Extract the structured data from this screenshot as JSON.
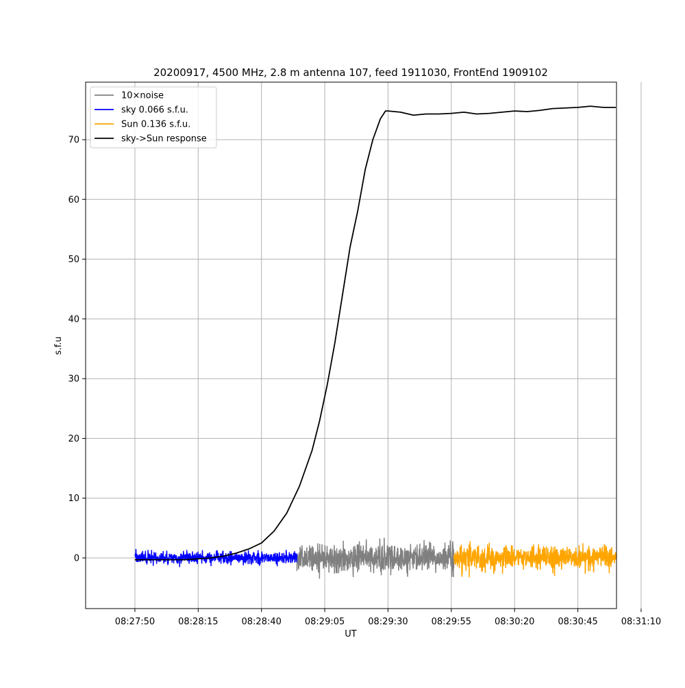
{
  "chart_data": {
    "type": "line",
    "title": "20200917, 4500 MHz, 2.8 m antenna 107, feed 1911030, FrontEnd 1909102",
    "xlabel": "UT",
    "ylabel": "s.f.u",
    "x_ticks": [
      "08:27:50",
      "08:28:15",
      "08:28:40",
      "08:29:05",
      "08:29:30",
      "08:29:55",
      "08:30:20",
      "08:30:45",
      "08:31:10"
    ],
    "xlim_seconds_after_0827": [
      40,
      240
    ],
    "y_ticks": [
      "0",
      "10",
      "20",
      "30",
      "40",
      "50",
      "60",
      "70"
    ],
    "ylim": [
      -8.5,
      80
    ],
    "grid": true,
    "legend_position": "top-left",
    "series": [
      {
        "name": "10×noise",
        "color": "#808080",
        "kind": "noise",
        "t_start": "08:28:54",
        "t_end": "08:29:56",
        "noise_amplitude_sfu": 1.6,
        "noise_peak_sfu": 4.5
      },
      {
        "name": "sky 0.066 s.f.u.",
        "color": "#0000ff",
        "kind": "noise",
        "t_start": "08:27:50",
        "t_end": "08:28:54",
        "noise_amplitude_sfu": 0.66,
        "noise_peak_sfu": 2
      },
      {
        "name": "Sun 0.136 s.f.u.",
        "color": "#ffa500",
        "kind": "noise",
        "t_start": "08:29:56",
        "t_end": "08:31:00",
        "noise_amplitude_sfu": 1.36,
        "noise_peak_sfu": 4.7
      },
      {
        "name": "sky->Sun response",
        "color": "#000000",
        "kind": "line",
        "x": [
          "08:27:50",
          "08:28:00",
          "08:28:10",
          "08:28:20",
          "08:28:25",
          "08:28:30",
          "08:28:35",
          "08:28:40",
          "08:28:45",
          "08:28:50",
          "08:28:55",
          "08:29:00",
          "08:29:03",
          "08:29:06",
          "08:29:09",
          "08:29:12",
          "08:29:15",
          "08:29:18",
          "08:29:21",
          "08:29:24",
          "08:29:27",
          "08:29:29",
          "08:29:30",
          "08:29:35",
          "08:29:40",
          "08:29:45",
          "08:29:50",
          "08:29:55",
          "08:30:00",
          "08:30:05",
          "08:30:10",
          "08:30:15",
          "08:30:20",
          "08:30:25",
          "08:30:30",
          "08:30:35",
          "08:30:40",
          "08:30:45",
          "08:30:50",
          "08:30:55",
          "08:31:00"
        ],
        "y": [
          -0.3,
          -0.3,
          -0.3,
          0,
          0.3,
          0.8,
          1.5,
          2.5,
          4.5,
          7.5,
          12,
          18,
          23,
          29,
          36,
          44,
          52,
          58,
          65,
          70,
          73.5,
          74.8,
          74.8,
          74.6,
          74.1,
          74.3,
          74.3,
          74.4,
          74.6,
          74.3,
          74.4,
          74.6,
          74.8,
          74.7,
          74.9,
          75.2,
          75.3,
          75.4,
          75.6,
          75.4,
          75.4
        ]
      }
    ]
  }
}
